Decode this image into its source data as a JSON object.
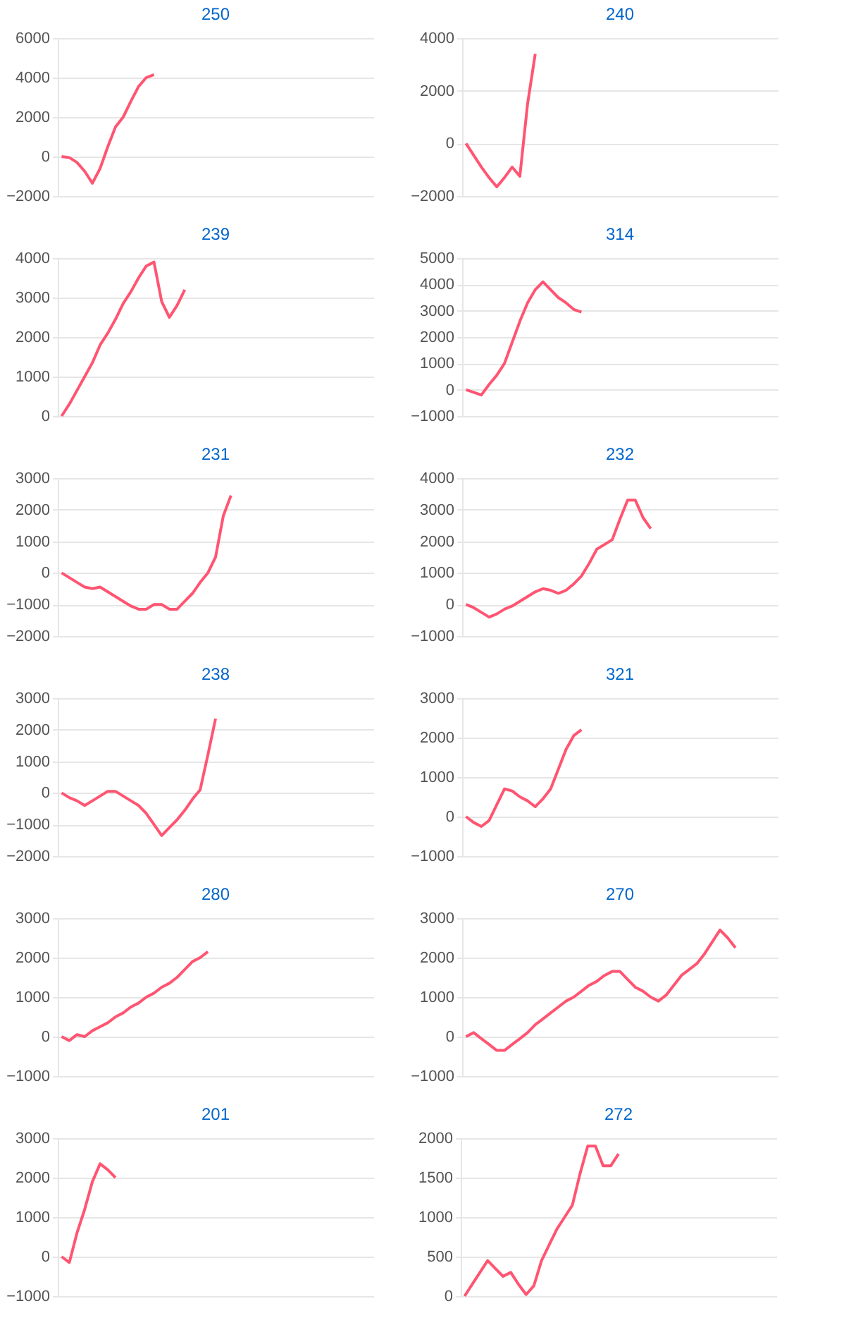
{
  "chart_data": [
    {
      "type": "line",
      "title": "250",
      "color": "#ff5572",
      "grid": "y",
      "tick_labels": "y",
      "ylim": [
        -2000,
        6000
      ],
      "yticks": [
        -2000,
        0,
        2000,
        4000,
        6000
      ],
      "categories": [
        null,
        null,
        null,
        null,
        null,
        null,
        null,
        null,
        null,
        null,
        null,
        null,
        null,
        null,
        null,
        null,
        null,
        null,
        null,
        null,
        null,
        null,
        null,
        null,
        null,
        null,
        null,
        null,
        null,
        null,
        null,
        null,
        null,
        null,
        null,
        null,
        null,
        null,
        null,
        null,
        null
      ],
      "values": [
        0,
        -50,
        -300,
        -750,
        -1350,
        -600,
        500,
        1500,
        2000,
        2800,
        3550,
        4000,
        4150,
        null,
        null,
        null,
        null,
        null,
        null,
        null,
        null,
        null,
        null,
        null,
        null,
        null,
        null,
        null,
        null,
        null,
        null,
        null,
        null,
        null,
        null,
        null,
        null,
        null,
        null,
        null,
        null
      ]
    },
    {
      "type": "line",
      "title": "240",
      "color": "#ff5572",
      "grid": "y",
      "tick_labels": "y",
      "ylim": [
        -2000,
        4000
      ],
      "yticks": [
        -2000,
        0,
        2000,
        4000
      ],
      "categories": [
        null,
        null,
        null,
        null,
        null,
        null,
        null,
        null,
        null,
        null,
        null,
        null,
        null,
        null,
        null,
        null,
        null,
        null,
        null,
        null,
        null,
        null,
        null,
        null,
        null,
        null,
        null,
        null,
        null,
        null,
        null,
        null,
        null,
        null,
        null,
        null,
        null,
        null,
        null,
        null,
        null
      ],
      "values": [
        0,
        -450,
        -900,
        -1300,
        -1650,
        -1300,
        -900,
        -1250,
        1500,
        3400,
        null,
        null,
        null,
        null,
        null,
        null,
        null,
        null,
        null,
        null,
        null,
        null,
        null,
        null,
        null,
        null,
        null,
        null,
        null,
        null,
        null,
        null,
        null,
        null,
        null,
        null,
        null,
        null,
        null,
        null,
        null
      ]
    },
    {
      "type": "line",
      "title": "239",
      "color": "#ff5572",
      "grid": "y",
      "tick_labels": "y",
      "ylim": [
        0,
        4000
      ],
      "yticks": [
        0,
        1000,
        2000,
        3000,
        4000
      ],
      "categories": [
        null,
        null,
        null,
        null,
        null,
        null,
        null,
        null,
        null,
        null,
        null,
        null,
        null,
        null,
        null,
        null,
        null,
        null,
        null,
        null,
        null,
        null,
        null,
        null,
        null,
        null,
        null,
        null,
        null,
        null,
        null,
        null,
        null,
        null,
        null,
        null,
        null,
        null,
        null,
        null,
        null
      ],
      "values": [
        0,
        300,
        650,
        1000,
        1350,
        1800,
        2100,
        2450,
        2850,
        3150,
        3500,
        3800,
        3900,
        2900,
        2500,
        2800,
        3200,
        null,
        null,
        null,
        null,
        null,
        null,
        null,
        null,
        null,
        null,
        null,
        null,
        null,
        null,
        null,
        null,
        null,
        null,
        null,
        null,
        null,
        null,
        null,
        null
      ]
    },
    {
      "type": "line",
      "title": "314",
      "color": "#ff5572",
      "grid": "y",
      "tick_labels": "y",
      "ylim": [
        -1000,
        5000
      ],
      "yticks": [
        -1000,
        0,
        1000,
        2000,
        3000,
        4000,
        5000
      ],
      "categories": [
        null,
        null,
        null,
        null,
        null,
        null,
        null,
        null,
        null,
        null,
        null,
        null,
        null,
        null,
        null,
        null,
        null,
        null,
        null,
        null,
        null,
        null,
        null,
        null,
        null,
        null,
        null,
        null,
        null,
        null,
        null,
        null,
        null,
        null,
        null,
        null,
        null,
        null,
        null,
        null,
        null
      ],
      "values": [
        0,
        -100,
        -200,
        200,
        550,
        1000,
        1800,
        2600,
        3300,
        3800,
        4100,
        3800,
        3500,
        3300,
        3050,
        2950,
        null,
        null,
        null,
        null,
        null,
        null,
        null,
        null,
        null,
        null,
        null,
        null,
        null,
        null,
        null,
        null,
        null,
        null,
        null,
        null,
        null,
        null,
        null,
        null,
        null
      ]
    },
    {
      "type": "line",
      "title": "231",
      "color": "#ff5572",
      "grid": "y",
      "tick_labels": "y",
      "ylim": [
        -2000,
        3000
      ],
      "yticks": [
        -2000,
        -1000,
        0,
        1000,
        2000,
        3000
      ],
      "categories": [
        null,
        null,
        null,
        null,
        null,
        null,
        null,
        null,
        null,
        null,
        null,
        null,
        null,
        null,
        null,
        null,
        null,
        null,
        null,
        null,
        null,
        null,
        null,
        null,
        null,
        null,
        null,
        null,
        null,
        null,
        null,
        null,
        null,
        null,
        null,
        null,
        null,
        null,
        null,
        null,
        null
      ],
      "values": [
        0,
        -150,
        -300,
        -450,
        -500,
        -450,
        -600,
        -750,
        -900,
        -1050,
        -1150,
        -1150,
        -1000,
        -1000,
        -1150,
        -1150,
        -900,
        -650,
        -300,
        0,
        500,
        1800,
        2450,
        null,
        null,
        null,
        null,
        null,
        null,
        null,
        null,
        null,
        null,
        null,
        null,
        null,
        null,
        null,
        null,
        null,
        null
      ]
    },
    {
      "type": "line",
      "title": "232",
      "color": "#ff5572",
      "grid": "y",
      "tick_labels": "y",
      "ylim": [
        -1000,
        4000
      ],
      "yticks": [
        -1000,
        0,
        1000,
        2000,
        3000,
        4000
      ],
      "categories": [
        null,
        null,
        null,
        null,
        null,
        null,
        null,
        null,
        null,
        null,
        null,
        null,
        null,
        null,
        null,
        null,
        null,
        null,
        null,
        null,
        null,
        null,
        null,
        null,
        null,
        null,
        null,
        null,
        null,
        null,
        null,
        null,
        null,
        null,
        null,
        null,
        null,
        null,
        null,
        null,
        null
      ],
      "values": [
        0,
        -100,
        -250,
        -400,
        -300,
        -150,
        -50,
        100,
        250,
        400,
        500,
        450,
        350,
        450,
        650,
        900,
        1300,
        1750,
        1900,
        2050,
        2700,
        3300,
        3300,
        2750,
        2400,
        null,
        null,
        null,
        null,
        null,
        null,
        null,
        null,
        null,
        null,
        null,
        null,
        null,
        null,
        null,
        null
      ]
    },
    {
      "type": "line",
      "title": "238",
      "color": "#ff5572",
      "grid": "y",
      "tick_labels": "y",
      "ylim": [
        -2000,
        3000
      ],
      "yticks": [
        -2000,
        -1000,
        0,
        1000,
        2000,
        3000
      ],
      "categories": [
        null,
        null,
        null,
        null,
        null,
        null,
        null,
        null,
        null,
        null,
        null,
        null,
        null,
        null,
        null,
        null,
        null,
        null,
        null,
        null,
        null,
        null,
        null,
        null,
        null,
        null,
        null,
        null,
        null,
        null,
        null,
        null,
        null,
        null,
        null,
        null,
        null,
        null,
        null,
        null,
        null
      ],
      "values": [
        0,
        -150,
        -250,
        -400,
        -250,
        -100,
        50,
        50,
        -100,
        -250,
        -400,
        -650,
        -1000,
        -1350,
        -1100,
        -850,
        -550,
        -200,
        100,
        1200,
        2350,
        null,
        null,
        null,
        null,
        null,
        null,
        null,
        null,
        null,
        null,
        null,
        null,
        null,
        null,
        null,
        null,
        null,
        null,
        null,
        null
      ]
    },
    {
      "type": "line",
      "title": "321",
      "color": "#ff5572",
      "grid": "y",
      "tick_labels": "y",
      "ylim": [
        -1000,
        3000
      ],
      "yticks": [
        -1000,
        0,
        1000,
        2000,
        3000
      ],
      "categories": [
        null,
        null,
        null,
        null,
        null,
        null,
        null,
        null,
        null,
        null,
        null,
        null,
        null,
        null,
        null,
        null,
        null,
        null,
        null,
        null,
        null,
        null,
        null,
        null,
        null,
        null,
        null,
        null,
        null,
        null,
        null,
        null,
        null,
        null,
        null,
        null,
        null,
        null,
        null,
        null,
        null
      ],
      "values": [
        0,
        -150,
        -250,
        -100,
        300,
        700,
        650,
        500,
        400,
        250,
        450,
        700,
        1200,
        1700,
        2050,
        2200,
        null,
        null,
        null,
        null,
        null,
        null,
        null,
        null,
        null,
        null,
        null,
        null,
        null,
        null,
        null,
        null,
        null,
        null,
        null,
        null,
        null,
        null,
        null,
        null,
        null
      ]
    },
    {
      "type": "line",
      "title": "280",
      "color": "#ff5572",
      "grid": "y",
      "tick_labels": "y",
      "ylim": [
        -1000,
        3000
      ],
      "yticks": [
        -1000,
        0,
        1000,
        2000,
        3000
      ],
      "categories": [
        null,
        null,
        null,
        null,
        null,
        null,
        null,
        null,
        null,
        null,
        null,
        null,
        null,
        null,
        null,
        null,
        null,
        null,
        null,
        null,
        null,
        null,
        null,
        null,
        null,
        null,
        null,
        null,
        null,
        null,
        null,
        null,
        null,
        null,
        null,
        null,
        null,
        null,
        null,
        null,
        null
      ],
      "values": [
        0,
        -100,
        50,
        0,
        150,
        250,
        350,
        500,
        600,
        750,
        850,
        1000,
        1100,
        1250,
        1350,
        1500,
        1700,
        1900,
        2000,
        2150,
        null,
        null,
        null,
        null,
        null,
        null,
        null,
        null,
        null,
        null,
        null,
        null,
        null,
        null,
        null,
        null,
        null,
        null,
        null,
        null,
        null
      ]
    },
    {
      "type": "line",
      "title": "270",
      "color": "#ff5572",
      "grid": "y",
      "tick_labels": "y",
      "ylim": [
        -1000,
        3000
      ],
      "yticks": [
        -1000,
        0,
        1000,
        2000,
        3000
      ],
      "categories": [
        null,
        null,
        null,
        null,
        null,
        null,
        null,
        null,
        null,
        null,
        null,
        null,
        null,
        null,
        null,
        null,
        null,
        null,
        null,
        null,
        null,
        null,
        null,
        null,
        null,
        null,
        null,
        null,
        null,
        null,
        null,
        null,
        null,
        null,
        null,
        null,
        null,
        null,
        null,
        null,
        null
      ],
      "values": [
        0,
        100,
        -50,
        -200,
        -350,
        -350,
        -200,
        -50,
        100,
        300,
        450,
        600,
        750,
        900,
        1000,
        1150,
        1300,
        1400,
        1550,
        1650,
        1650,
        1450,
        1250,
        1150,
        1000,
        900,
        1050,
        1300,
        1550,
        1700,
        1850,
        2100,
        2400,
        2700,
        2500,
        2250,
        null,
        null,
        null,
        null,
        null
      ]
    },
    {
      "type": "line",
      "title": "201",
      "color": "#ff5572",
      "grid": "y",
      "tick_labels": "y",
      "ylim": [
        -1000,
        3000
      ],
      "yticks": [
        -1000,
        0,
        1000,
        2000,
        3000
      ],
      "categories": [
        null,
        null,
        null,
        null,
        null,
        null,
        null,
        null,
        null,
        null,
        null,
        null,
        null,
        null,
        null,
        null,
        null,
        null,
        null,
        null,
        null,
        null,
        null,
        null,
        null,
        null,
        null,
        null,
        null,
        null,
        null,
        null,
        null,
        null,
        null,
        null,
        null,
        null,
        null,
        null,
        null
      ],
      "values": [
        0,
        -150,
        600,
        1200,
        1900,
        2350,
        2200,
        2000,
        null,
        null,
        null,
        null,
        null,
        null,
        null,
        null,
        null,
        null,
        null,
        null,
        null,
        null,
        null,
        null,
        null,
        null,
        null,
        null,
        null,
        null,
        null,
        null,
        null,
        null,
        null,
        null,
        null,
        null,
        null,
        null,
        null
      ]
    },
    {
      "type": "line",
      "title": "272",
      "color": "#ff5572",
      "grid": "y",
      "tick_labels": "y",
      "ylim": [
        0,
        2000
      ],
      "yticks": [
        0,
        500,
        1000,
        1500,
        2000
      ],
      "categories": [
        null,
        null,
        null,
        null,
        null,
        null,
        null,
        null,
        null,
        null,
        null,
        null,
        null,
        null,
        null,
        null,
        null,
        null,
        null,
        null,
        null,
        null,
        null,
        null,
        null,
        null,
        null,
        null,
        null,
        null,
        null,
        null,
        null,
        null,
        null,
        null,
        null,
        null,
        null,
        null,
        null
      ],
      "values": [
        0,
        150,
        300,
        450,
        350,
        250,
        300,
        150,
        20,
        130,
        450,
        650,
        850,
        1000,
        1150,
        1550,
        1900,
        1900,
        1650,
        1650,
        1800,
        null,
        null,
        null,
        null,
        null,
        null,
        null,
        null,
        null,
        null,
        null,
        null,
        null,
        null,
        null,
        null,
        null,
        null,
        null,
        null
      ]
    }
  ]
}
